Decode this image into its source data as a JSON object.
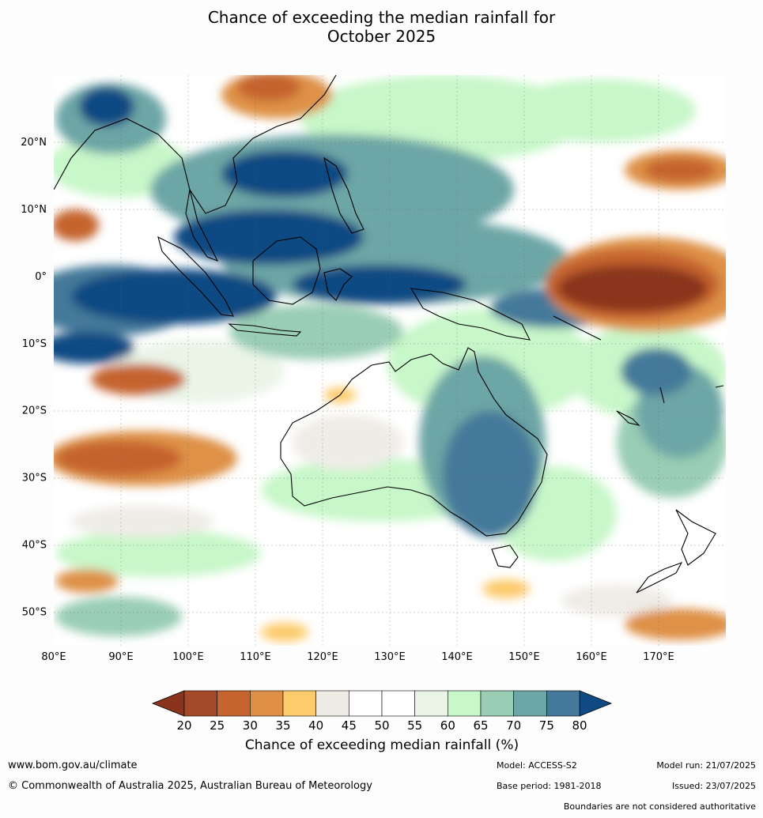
{
  "title_line1": "Chance of exceeding the median rainfall for",
  "title_line2": "October 2025",
  "map": {
    "lon_ticks": [
      "80°E",
      "90°E",
      "100°E",
      "110°E",
      "120°E",
      "130°E",
      "140°E",
      "150°E",
      "160°E",
      "170°E"
    ],
    "lat_ticks": [
      "20°N",
      "10°N",
      "0°",
      "10°S",
      "20°S",
      "30°S",
      "40°S",
      "50°S"
    ],
    "lon_range": [
      80,
      180
    ],
    "lat_range": [
      -55,
      30
    ]
  },
  "colorbar": {
    "labels": [
      "20",
      "25",
      "30",
      "35",
      "40",
      "45",
      "50",
      "55",
      "60",
      "65",
      "70",
      "75",
      "80"
    ],
    "colors": [
      "#a54a28",
      "#c5642f",
      "#de9146",
      "#fdcb6c",
      "#efece6",
      "#ffffff",
      "#ffffff",
      "#eaf5e8",
      "#c8f7c9",
      "#99cdb4",
      "#6da6a6",
      "#44799a"
    ],
    "under_color": "#8a341d",
    "over_color": "#104a82",
    "title": "Chance of exceeding median rainfall (%)"
  },
  "footer": {
    "url": "www.bom.gov.au/climate",
    "copyright": "© Commonwealth of Australia 2025, Australian Bureau of Meteorology",
    "model": "Model: ACCESS-S2",
    "base_period": "Base period: 1981-2018",
    "model_run": "Model run: 21/07/2025",
    "issued": "Issued: 23/07/2025",
    "disclaimer": "Boundaries are not considered authoritative"
  }
}
